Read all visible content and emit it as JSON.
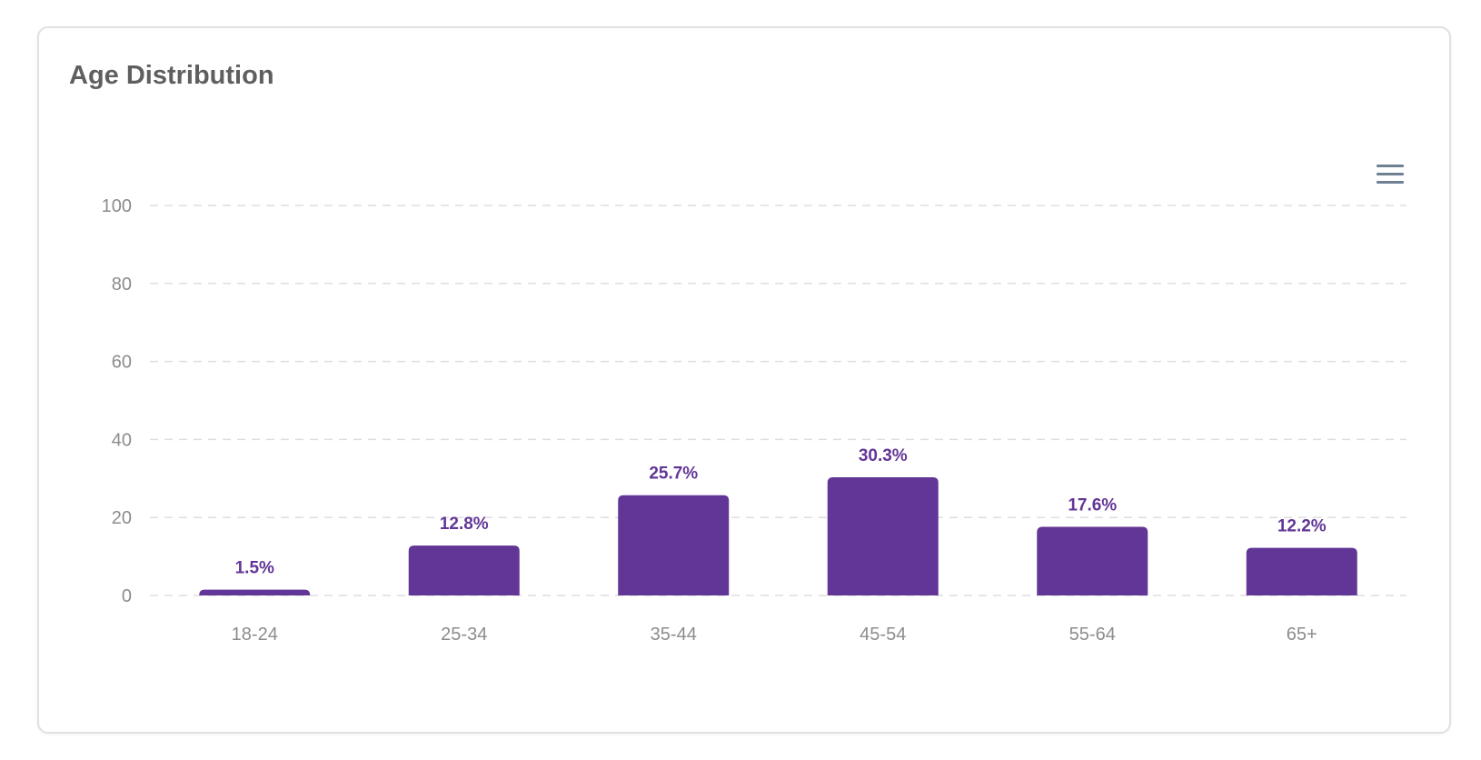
{
  "card": {
    "title": "Age Distribution"
  },
  "toolbar": {
    "menu_icon": "hamburger-menu-icon"
  },
  "colors": {
    "bar": "#623696",
    "data_label": "#623696",
    "grid": "#dedede",
    "tick_label": "#8c8c8c"
  },
  "chart_data": {
    "type": "bar",
    "title": "Age Distribution",
    "categories": [
      "18-24",
      "25-34",
      "35-44",
      "45-54",
      "55-64",
      "65+"
    ],
    "values": [
      1.5,
      12.8,
      25.7,
      30.3,
      17.6,
      12.2
    ],
    "data_labels": [
      "1.5%",
      "12.8%",
      "25.7%",
      "30.3%",
      "17.6%",
      "12.2%"
    ],
    "ylim": [
      0,
      100
    ],
    "yticks": [
      0,
      20,
      40,
      60,
      80,
      100
    ],
    "xlabel": "",
    "ylabel": "",
    "grid": true,
    "grid_style": "dashed",
    "legend": false
  }
}
